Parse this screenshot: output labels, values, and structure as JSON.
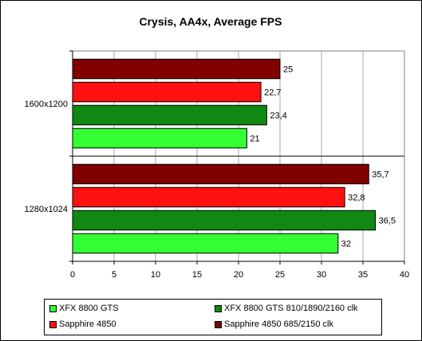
{
  "chart_data": {
    "type": "bar",
    "orientation": "horizontal",
    "title": "Crysis, AA4x, Average FPS",
    "categories": [
      "1600x1200",
      "1280x1024"
    ],
    "series": [
      {
        "name": "XFX 8800 GTS",
        "values": [
          21,
          32
        ],
        "labels": [
          "21",
          "32"
        ],
        "color": "#33ff33"
      },
      {
        "name": "XFX 8800 GTS 810/1890/2160 clk",
        "values": [
          23.4,
          36.5
        ],
        "labels": [
          "23,4",
          "36,5"
        ],
        "color": "#118811"
      },
      {
        "name": "Sapphire 4850",
        "values": [
          22.7,
          32.8
        ],
        "labels": [
          "22,7",
          "32,8"
        ],
        "color": "#ff1111"
      },
      {
        "name": "Sapphire 4850 685/2150 clk",
        "values": [
          25,
          35.7
        ],
        "labels": [
          "25",
          "35,7"
        ],
        "color": "#800000"
      }
    ],
    "xlim": [
      0,
      40
    ],
    "xticks": [
      0,
      5,
      10,
      15,
      20,
      25,
      30,
      35,
      40
    ],
    "grid": true,
    "legend_position": "bottom"
  }
}
